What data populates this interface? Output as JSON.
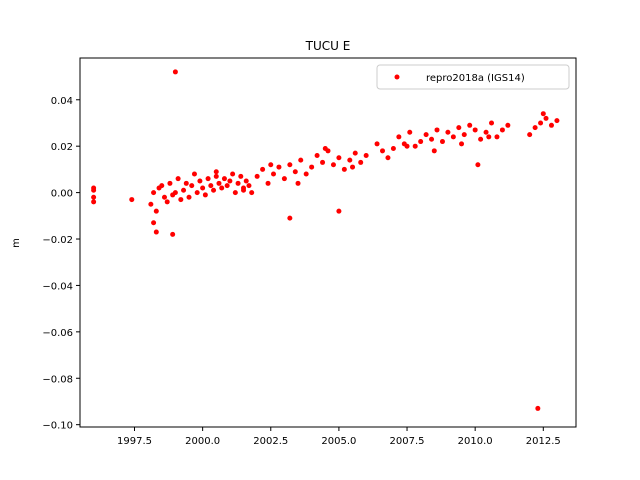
{
  "chart_data": {
    "type": "scatter",
    "title": "TUCU E",
    "xlabel": "",
    "ylabel": "m",
    "xlim": [
      1995.5,
      2013.7
    ],
    "ylim": [
      -0.101,
      0.058
    ],
    "xticks": [
      1997.5,
      2000.0,
      2002.5,
      2005.0,
      2007.5,
      2010.0,
      2012.5
    ],
    "xtick_labels": [
      "1997.5",
      "2000.0",
      "2002.5",
      "2005.0",
      "2007.5",
      "2010.0",
      "2012.5"
    ],
    "yticks": [
      0.04,
      0.02,
      0.0,
      -0.02,
      -0.04,
      -0.06,
      -0.08,
      -0.1
    ],
    "ytick_labels": [
      "0.04",
      "0.02",
      "0.00",
      "−0.02",
      "−0.04",
      "−0.06",
      "−0.08",
      "−0.10"
    ],
    "grid": false,
    "legend_position": "top-right",
    "series": [
      {
        "name": "repro2018a (IGS14)",
        "color": "#ff0000",
        "x": [
          1996.0,
          1996.0,
          1996.0,
          1996.0,
          1997.4,
          1998.1,
          1998.2,
          1998.3,
          1998.4,
          1998.5,
          1998.6,
          1998.7,
          1998.8,
          1998.9,
          1999.0,
          1999.1,
          1999.2,
          1999.3,
          1999.4,
          1999.5,
          1999.6,
          1999.7,
          1999.8,
          1999.9,
          2000.0,
          2000.1,
          2000.2,
          2000.3,
          2000.4,
          2000.5,
          2000.6,
          2000.7,
          2000.8,
          2000.9,
          2001.0,
          2001.1,
          2001.2,
          2001.3,
          2001.4,
          2001.5,
          2001.6,
          2001.7,
          2001.8,
          2002.0,
          2002.2,
          2002.4,
          2002.6,
          2002.8,
          2003.0,
          2003.2,
          2003.4,
          2003.6,
          2003.8,
          2004.0,
          2004.2,
          2004.4,
          2004.6,
          2004.8,
          2005.0,
          2005.2,
          2005.4,
          2005.6,
          2005.8,
          2006.0,
          2006.6,
          2006.8,
          2007.0,
          2007.2,
          2007.4,
          2007.6,
          2007.8,
          2008.0,
          2008.2,
          2008.4,
          2008.6,
          2008.8,
          2009.0,
          2009.2,
          2009.4,
          2009.6,
          2009.8,
          2010.0,
          2010.2,
          2010.4,
          2010.6,
          2010.8,
          2011.0,
          2011.2,
          2012.0,
          2012.2,
          2012.4,
          2012.6,
          2012.8,
          2013.0,
          1999.0,
          2012.3,
          1998.3,
          1998.9,
          2003.2,
          2005.0,
          2010.1,
          2006.4,
          1998.2,
          2000.5,
          2001.5,
          2002.5,
          2003.5,
          2004.5,
          2005.5,
          2007.5,
          2008.5,
          2009.5,
          2010.5,
          2012.5
        ],
        "y": [
          0.001,
          -0.002,
          -0.004,
          0.002,
          -0.003,
          -0.005,
          0.0,
          -0.008,
          0.002,
          0.003,
          -0.002,
          -0.004,
          0.004,
          -0.001,
          0.0,
          0.006,
          -0.003,
          0.001,
          0.004,
          -0.002,
          0.003,
          0.008,
          0.0,
          0.005,
          0.002,
          -0.001,
          0.006,
          0.003,
          0.001,
          0.007,
          0.004,
          0.002,
          0.006,
          0.003,
          0.005,
          0.008,
          0.0,
          0.004,
          0.007,
          0.002,
          0.005,
          0.003,
          0.0,
          0.007,
          0.01,
          0.004,
          0.008,
          0.011,
          0.006,
          0.012,
          0.009,
          0.014,
          0.008,
          0.011,
          0.016,
          0.013,
          0.018,
          0.012,
          0.015,
          0.01,
          0.014,
          0.017,
          0.013,
          0.016,
          0.018,
          0.015,
          0.019,
          0.024,
          0.021,
          0.026,
          0.02,
          0.022,
          0.025,
          0.023,
          0.027,
          0.022,
          0.026,
          0.024,
          0.028,
          0.025,
          0.029,
          0.027,
          0.023,
          0.026,
          0.03,
          0.024,
          0.027,
          0.029,
          0.025,
          0.028,
          0.03,
          0.032,
          0.029,
          0.031,
          0.052,
          -0.093,
          -0.017,
          -0.018,
          -0.011,
          -0.008,
          0.012,
          0.021,
          -0.013,
          0.009,
          0.001,
          0.012,
          0.004,
          0.019,
          0.011,
          0.02,
          0.018,
          0.021,
          0.024,
          0.034
        ]
      }
    ]
  }
}
